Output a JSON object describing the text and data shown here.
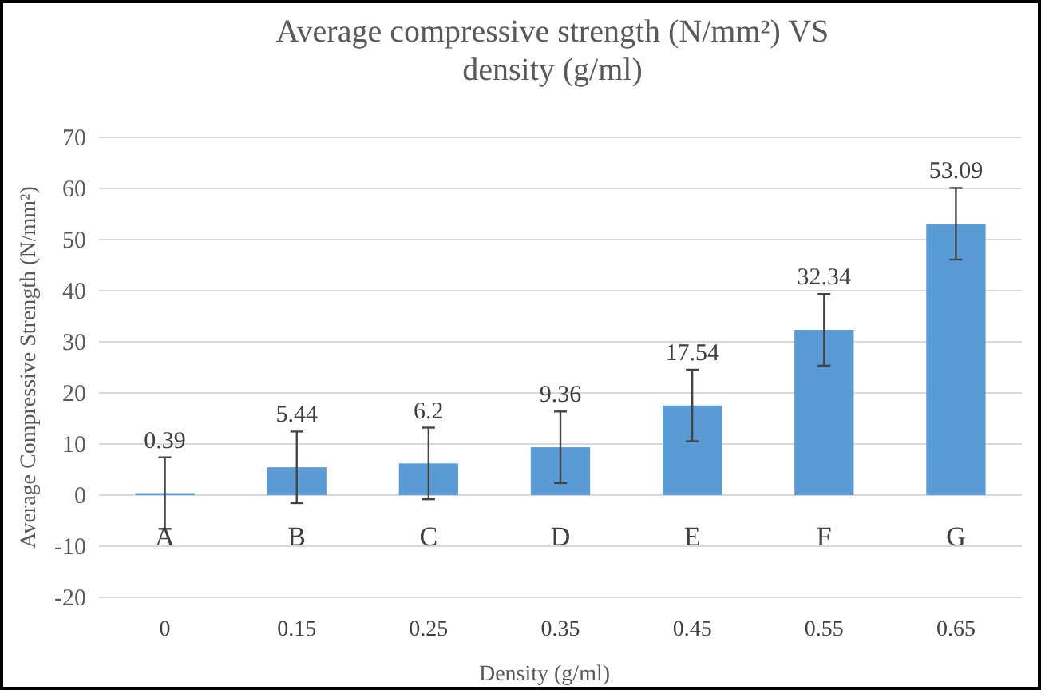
{
  "chart_data": {
    "type": "bar",
    "title": "Average compressive strength (N/mm²) VS density (g/ml)",
    "xlabel": "Density (g/ml)",
    "ylabel": "Average Compressive Strength (N/mm²)",
    "categories": [
      "0",
      "0.15",
      "0.25",
      "0.35",
      "0.45",
      "0.55",
      "0.65"
    ],
    "values": [
      0.39,
      5.44,
      6.2,
      9.36,
      17.54,
      32.34,
      53.09
    ],
    "errors": [
      7,
      7,
      7,
      7,
      7,
      7,
      7
    ],
    "color": "#5b9bd5",
    "data_labels": true,
    "ylim": [
      -20,
      70
    ],
    "yticks": [
      -20,
      -10,
      0,
      10,
      20,
      30,
      40,
      50,
      60,
      70
    ],
    "grid": "y",
    "annotations": [
      "A",
      "B",
      "C",
      "D",
      "E",
      "F",
      "G"
    ]
  }
}
